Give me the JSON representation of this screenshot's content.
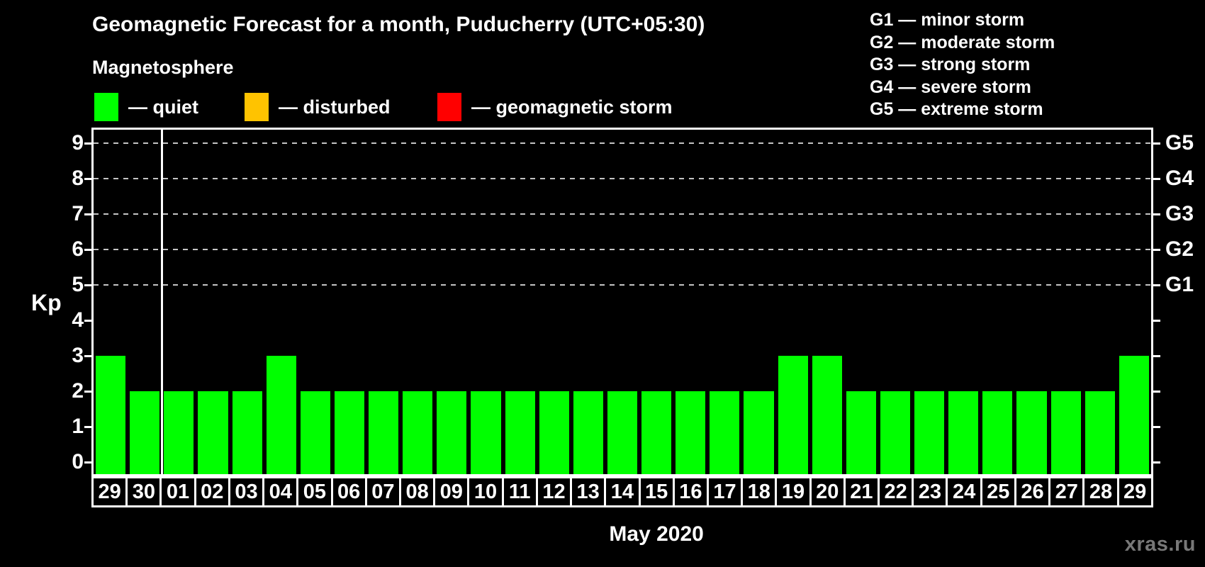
{
  "title": "Geomagnetic Forecast for a month, Puducherry (UTC+05:30)",
  "subtitle": "Magnetosphere",
  "legend": [
    {
      "name": "quiet",
      "label": "— quiet",
      "color": "#00ff00"
    },
    {
      "name": "disturbed",
      "label": "— disturbed",
      "color": "#ffc300"
    },
    {
      "name": "geomagnetic-storm",
      "label": "— geomagnetic storm",
      "color": "#ff0000"
    }
  ],
  "storm_scale_legend": [
    "G1 — minor storm",
    "G2 — moderate storm",
    "G3 — strong storm",
    "G4 — severe storm",
    "G5 — extreme storm"
  ],
  "watermark": "xras.ru",
  "chart_data": {
    "type": "bar",
    "title": "Geomagnetic Forecast for a month, Puducherry (UTC+05:30)",
    "xlabel": "May 2020",
    "ylabel": "Kp",
    "ylim": [
      0,
      9
    ],
    "yticks": [
      0,
      1,
      2,
      3,
      4,
      5,
      6,
      7,
      8,
      9
    ],
    "grid_levels": [
      5,
      6,
      7,
      8,
      9
    ],
    "grid": "dashed horizontal at Kp 5-9",
    "right_axis": [
      {
        "kp": 5,
        "label": "G1"
      },
      {
        "kp": 6,
        "label": "G2"
      },
      {
        "kp": 7,
        "label": "G3"
      },
      {
        "kp": 8,
        "label": "G4"
      },
      {
        "kp": 9,
        "label": "G5"
      }
    ],
    "categories": [
      "29",
      "30",
      "01",
      "02",
      "03",
      "04",
      "05",
      "06",
      "07",
      "08",
      "09",
      "10",
      "11",
      "12",
      "13",
      "14",
      "15",
      "16",
      "17",
      "18",
      "19",
      "20",
      "21",
      "22",
      "23",
      "24",
      "25",
      "26",
      "27",
      "28",
      "29"
    ],
    "values": [
      3,
      2,
      2,
      2,
      2,
      3,
      2,
      2,
      2,
      2,
      2,
      2,
      2,
      2,
      2,
      2,
      2,
      2,
      2,
      2,
      3,
      3,
      2,
      2,
      2,
      2,
      2,
      2,
      2,
      2,
      3
    ],
    "bar_color": "#00ff00",
    "month_separator_before_index": 2,
    "legend_position": "top"
  }
}
